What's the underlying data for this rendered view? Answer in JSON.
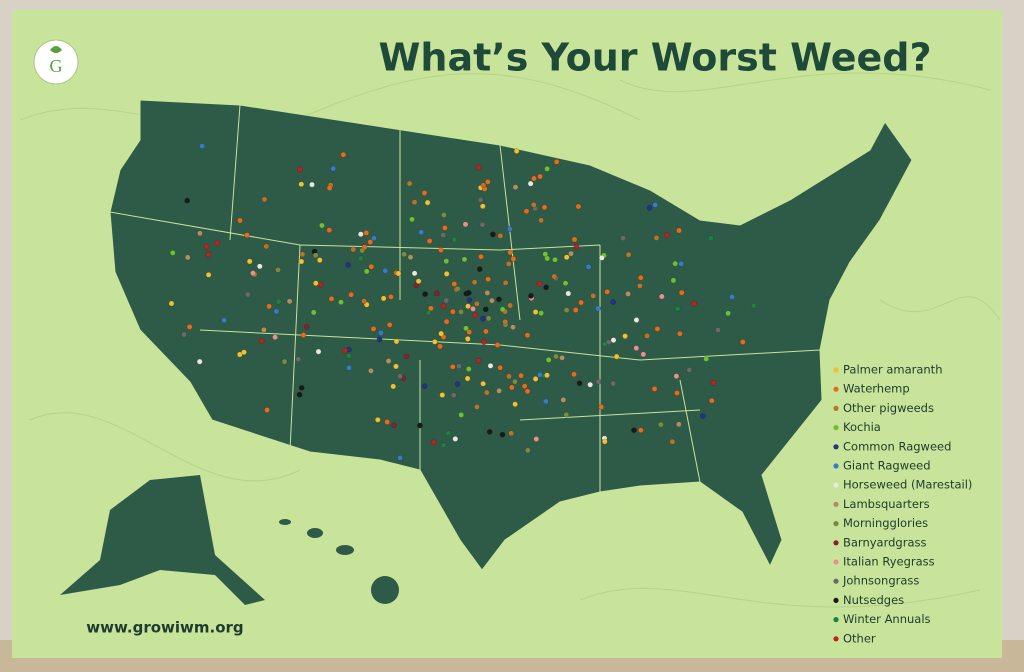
{
  "title": "What’s Your Worst Weed?",
  "logo": "G",
  "website": "www.growiwm.org",
  "legend": [
    {
      "label": "Palmer amaranth",
      "color": "#f0c030"
    },
    {
      "label": "Waterhemp",
      "color": "#e86a1a"
    },
    {
      "label": "Other pigweeds",
      "color": "#b8742a"
    },
    {
      "label": "Kochia",
      "color": "#6ec030"
    },
    {
      "label": "Common Ragweed",
      "color": "#223388"
    },
    {
      "label": "Giant Ragweed",
      "color": "#3a7ac8"
    },
    {
      "label": "Horseweed (Marestail)",
      "color": "#e8e8e0"
    },
    {
      "label": "Lambsquarters",
      "color": "#b09060"
    },
    {
      "label": "Morningglories",
      "color": "#7a8a40"
    },
    {
      "label": "Barnyardgrass",
      "color": "#882030"
    },
    {
      "label": "Italian Ryegrass",
      "color": "#e89090"
    },
    {
      "label": "Johnsongrass",
      "color": "#6a6a6a"
    },
    {
      "label": "Nutsedges",
      "color": "#1a1a1a"
    },
    {
      "label": "Winter Annuals",
      "color": "#208040"
    },
    {
      "label": "Other",
      "color": "#c02020"
    }
  ]
}
